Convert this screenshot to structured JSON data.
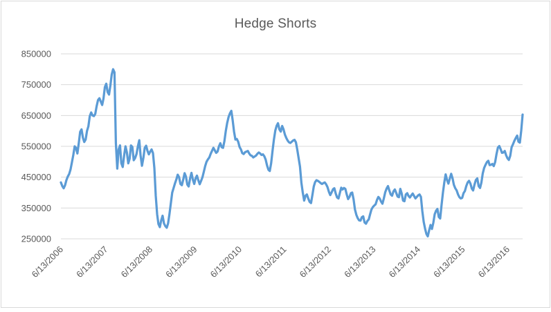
{
  "chart_data": {
    "type": "line",
    "title": "Hedge Shorts",
    "xlabel": "",
    "ylabel": "",
    "ylim": [
      250000,
      850000
    ],
    "grid": "horizontal",
    "legend": "none",
    "y_ticks": [
      850000,
      750000,
      650000,
      550000,
      450000,
      350000,
      250000
    ],
    "x_tick_labels": [
      "6/13/2006",
      "6/13/2007",
      "6/13/2008",
      "6/13/2009",
      "6/13/2010",
      "6/13/2011",
      "6/13/2012",
      "6/13/2013",
      "6/13/2014",
      "6/13/2015",
      "6/13/2016"
    ],
    "colors": {
      "line": "#5B9BD5",
      "gridline": "#D9D9D9",
      "axis_text": "#595959",
      "title_text": "#595959",
      "border": "#D9D9D9",
      "background": "#FFFFFF"
    },
    "series": [
      {
        "name": "Hedge Shorts",
        "values": [
          433000,
          421000,
          414000,
          424000,
          440000,
          452000,
          460000,
          475000,
          498000,
          522000,
          550000,
          545000,
          527000,
          560000,
          597000,
          605000,
          578000,
          564000,
          572000,
          600000,
          615000,
          648000,
          660000,
          650000,
          648000,
          655000,
          680000,
          700000,
          706000,
          695000,
          684000,
          705000,
          742000,
          753000,
          726000,
          718000,
          748000,
          783000,
          800000,
          790000,
          560000,
          478000,
          540000,
          553000,
          495000,
          483000,
          520000,
          550000,
          530000,
          495000,
          510000,
          553000,
          548000,
          505000,
          512000,
          525000,
          550000,
          570000,
          520000,
          487000,
          512000,
          545000,
          552000,
          535000,
          524000,
          533000,
          540000,
          528000,
          480000,
          390000,
          330000,
          298000,
          288000,
          310000,
          325000,
          300000,
          291000,
          286000,
          300000,
          330000,
          365000,
          400000,
          415000,
          430000,
          443000,
          458000,
          450000,
          428000,
          424000,
          442000,
          463000,
          452000,
          426000,
          420000,
          446000,
          464000,
          442000,
          428000,
          446000,
          455000,
          440000,
          427000,
          438000,
          450000,
          468000,
          486000,
          500000,
          508000,
          514000,
          526000,
          536000,
          545000,
          537000,
          529000,
          533000,
          550000,
          560000,
          547000,
          545000,
          567000,
          600000,
          626000,
          645000,
          657000,
          665000,
          635000,
          598000,
          572000,
          574000,
          565000,
          548000,
          540000,
          528000,
          525000,
          531000,
          533000,
          535000,
          527000,
          521000,
          519000,
          514000,
          517000,
          520000,
          526000,
          530000,
          527000,
          522000,
          524000,
          518000,
          507000,
          488000,
          474000,
          470000,
          495000,
          535000,
          572000,
          601000,
          617000,
          625000,
          605000,
          598000,
          616000,
          605000,
          588000,
          577000,
          569000,
          563000,
          561000,
          565000,
          569000,
          571000,
          563000,
          540000,
          512000,
          484000,
          432000,
          400000,
          374000,
          390000,
          394000,
          381000,
          370000,
          366000,
          392000,
          420000,
          434000,
          440000,
          438000,
          435000,
          431000,
          428000,
          431000,
          433000,
          427000,
          418000,
          403000,
          392000,
          401000,
          411000,
          414000,
          397000,
          384000,
          381000,
          399000,
          416000,
          410000,
          415000,
          412000,
          394000,
          379000,
          386000,
          398000,
          400000,
          378000,
          345000,
          328000,
          317000,
          310000,
          309000,
          320000,
          323000,
          303000,
          299000,
          308000,
          313000,
          330000,
          345000,
          353000,
          358000,
          362000,
          376000,
          386000,
          381000,
          371000,
          364000,
          381000,
          401000,
          413000,
          421000,
          407000,
          394000,
          390000,
          404000,
          410000,
          399000,
          387000,
          385000,
          412000,
          397000,
          374000,
          372000,
          394000,
          398000,
          389000,
          384000,
          391000,
          397000,
          389000,
          381000,
          386000,
          391000,
          394000,
          386000,
          340000,
          305000,
          283000,
          266000,
          258000,
          278000,
          295000,
          282000,
          302000,
          330000,
          341000,
          347000,
          321000,
          316000,
          360000,
          400000,
          432000,
          459000,
          441000,
          429000,
          446000,
          461000,
          446000,
          425000,
          414000,
          407000,
          394000,
          385000,
          381000,
          383000,
          398000,
          405000,
          421000,
          433000,
          438000,
          429000,
          413000,
          407000,
          426000,
          441000,
          446000,
          421000,
          415000,
          432000,
          462000,
          480000,
          490000,
          499000,
          503000,
          489000,
          490000,
          493000,
          486000,
          499000,
          525000,
          546000,
          551000,
          541000,
          529000,
          530000,
          535000,
          521000,
          511000,
          506000,
          519000,
          547000,
          557000,
          568000,
          577000,
          585000,
          565000,
          562000,
          601000,
          653000
        ]
      }
    ]
  }
}
